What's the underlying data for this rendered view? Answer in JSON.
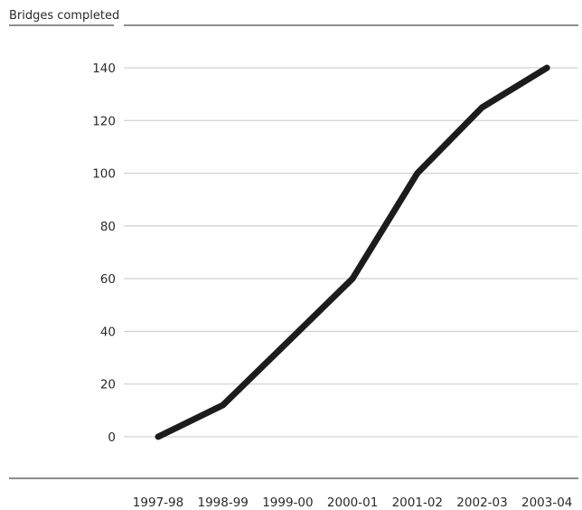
{
  "chart_data": {
    "type": "line",
    "title": "",
    "xlabel": "",
    "ylabel": "Bridges completed",
    "categories": [
      "1997-98",
      "1998-99",
      "1999-00",
      "2000-01",
      "2001-02",
      "2002-03",
      "2003-04"
    ],
    "series": [
      {
        "values": [
          0,
          12,
          36,
          60,
          100,
          125,
          140
        ]
      }
    ],
    "ylim": [
      0,
      140
    ],
    "yticks": [
      0,
      20,
      40,
      60,
      80,
      100,
      120,
      140
    ],
    "grid": true,
    "legend": "none",
    "colors": {
      "line": "#1c1c1c",
      "grid": "#c8c8c8",
      "axis": "#1c1c1c"
    }
  }
}
